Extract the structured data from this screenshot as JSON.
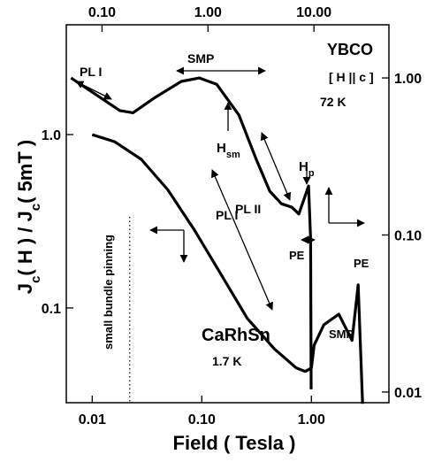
{
  "chart_data": {
    "type": "line",
    "xlabel": "Field ( Tesla )",
    "ylabel": [
      {
        "text": "J"
      },
      {
        "text": "c",
        "sub": true
      },
      {
        "text": "( H ) / J"
      },
      {
        "text": "c",
        "sub": true
      },
      {
        "text": "( 5mT )"
      }
    ],
    "xscale": "log",
    "yscale": "log",
    "xlim": [
      0.0058,
      5.1
    ],
    "xticks": [
      0.01,
      {
        "value": 0.1,
        "label": "0.10"
      },
      {
        "value": 1,
        "label": "1.00"
      }
    ],
    "x2lim": [
      0.046,
      51
    ],
    "x2ticks": [
      {
        "value": 0.1,
        "label": "0.10"
      },
      {
        "value": 1,
        "label": "1.00"
      },
      {
        "value": 10,
        "label": "10.00"
      }
    ],
    "ylim": [
      0.0284,
      4.3
    ],
    "yticks": [
      0.1,
      {
        "value": 1,
        "label": "1.0"
      }
    ],
    "y2lim": [
      0.00855,
      2.18
    ],
    "y2ticks": [
      0.01,
      {
        "value": 0.1,
        "label": "0.10"
      },
      {
        "value": 1,
        "label": "1.00"
      }
    ],
    "series": [
      {
        "name": "CaRhSn",
        "color": "#000000",
        "x": [
          0.01,
          0.016,
          0.028,
          0.049,
          0.086,
          0.15,
          0.26,
          0.46,
          0.73,
          0.88,
          1.0,
          1.06,
          1.3,
          1.78,
          2.35,
          2.67,
          2.93
        ],
        "values": [
          1.0,
          0.91,
          0.72,
          0.48,
          0.28,
          0.156,
          0.087,
          0.058,
          0.045,
          0.043,
          0.045,
          0.061,
          0.08,
          0.092,
          0.065,
          0.136,
          0.028
        ]
      },
      {
        "name": "YBCO",
        "color": "#000000",
        "axis": "y2",
        "xaxis": "x2",
        "x": [
          0.051,
          0.091,
          0.147,
          0.196,
          0.316,
          0.56,
          0.83,
          1.21,
          1.96,
          2.87,
          3.83,
          4.92,
          6.2,
          7.2,
          8.9,
          9.3,
          9.4
        ],
        "values": [
          1.0,
          0.77,
          0.62,
          0.6,
          0.75,
          0.95,
          1.0,
          0.91,
          0.58,
          0.3,
          0.19,
          0.158,
          0.15,
          0.136,
          0.205,
          0.094,
          0.0104
        ]
      }
    ],
    "reference_line": {
      "x": 0.022,
      "label": "small bundle pinning"
    },
    "annotations": [
      {
        "text": "PL I"
      },
      {
        "text": "SMP"
      },
      {
        "text": "YBCO"
      },
      {
        "text": "[ H || c ]"
      },
      {
        "text": "72 K"
      },
      {
        "text": "H",
        "sub": "sm"
      },
      {
        "text": "PL II"
      },
      {
        "text": "H",
        "sub": "p"
      },
      {
        "text": "PE"
      },
      {
        "text": "PL I"
      },
      {
        "text": "CaRhSn"
      },
      {
        "text": "1.7 K"
      },
      {
        "text": "SMP"
      },
      {
        "text": "PE"
      }
    ]
  }
}
